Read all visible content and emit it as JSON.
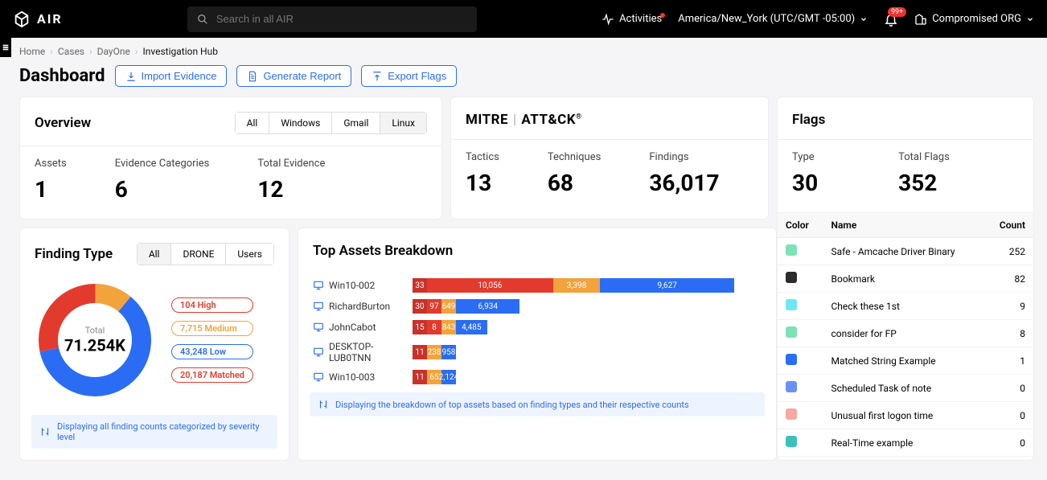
{
  "topbar": {
    "brand": "AIR",
    "search_placeholder": "Search in all AIR",
    "activities_label": "Activities",
    "timezone_label": "America/New_York (UTC/GMT -05:00)",
    "bell_badge": "99+",
    "org_label": "Compromised ORG"
  },
  "breadcrumbs": {
    "items": [
      "Home",
      "Cases",
      "DayOne",
      "Investigation Hub"
    ],
    "current_index": 3
  },
  "header": {
    "title": "Dashboard",
    "buttons": {
      "import": "Import Evidence",
      "report": "Generate Report",
      "export": "Export Flags"
    }
  },
  "overview": {
    "title": "Overview",
    "tabs": [
      "All",
      "Windows",
      "Gmail",
      "Linux"
    ],
    "active_tab": 3,
    "kpis": [
      {
        "label": "Assets",
        "value": "1"
      },
      {
        "label": "Evidence Categories",
        "value": "6"
      },
      {
        "label": "Total Evidence",
        "value": "12"
      }
    ]
  },
  "mitre": {
    "brand_a": "MITRE",
    "brand_b": "ATT&CK",
    "kpis": [
      {
        "label": "Tactics",
        "value": "13"
      },
      {
        "label": "Techniques",
        "value": "68"
      },
      {
        "label": "Findings",
        "value": "36,017"
      }
    ]
  },
  "flags": {
    "title": "Flags",
    "kpis": [
      {
        "label": "Type",
        "value": "30"
      },
      {
        "label": "Total Flags",
        "value": "352"
      }
    ],
    "columns": [
      "Color",
      "Name",
      "Count"
    ],
    "rows": [
      {
        "color": "#7de2b4",
        "name": "Safe - Amcache Driver Binary",
        "count": "252"
      },
      {
        "color": "#2b2b2b",
        "name": "Bookmark",
        "count": "82"
      },
      {
        "color": "#6de7f2",
        "name": "Check these 1st",
        "count": "9"
      },
      {
        "color": "#7de2b4",
        "name": "consider for FP",
        "count": "8"
      },
      {
        "color": "#2a6df4",
        "name": "Matched String Example",
        "count": "1"
      },
      {
        "color": "#6a8ff5",
        "name": "Scheduled Task of note",
        "count": "0"
      },
      {
        "color": "#f5a9a0",
        "name": "Unusual first logon time",
        "count": "0"
      },
      {
        "color": "#3bc1b9",
        "name": "Real-Time example",
        "count": "0"
      }
    ]
  },
  "finding_type": {
    "title": "Finding Type",
    "tabs": [
      "All",
      "DRONE",
      "Users"
    ],
    "active_tab": 0,
    "total_label": "Total",
    "total_value": "71.254K",
    "slices": [
      {
        "label": "104 High",
        "value": 104,
        "color": "#e23b2e",
        "text": "#e23b2e"
      },
      {
        "label": "7,715 Medium",
        "value": 7715,
        "color": "#f2a33c",
        "text": "#f2a33c"
      },
      {
        "label": "43,248 Low",
        "value": 43248,
        "color": "#2a6df4",
        "text": "#2a6df4"
      },
      {
        "label": "20,187 Matched",
        "value": 20187,
        "color": "#e23b2e",
        "text": "#e23b2e"
      }
    ],
    "donut": {
      "radius": 58,
      "thickness": 24,
      "colors": {
        "high": "#e23b2e",
        "medium": "#f2a33c",
        "low": "#2a6df4",
        "matched": "#e23b2e"
      }
    },
    "info": "Displaying all finding counts categorized by severity level"
  },
  "top_assets": {
    "title": "Top Assets Breakdown",
    "max": 23114,
    "colors": {
      "high": "#e23b2e",
      "medium": "#f2a33c",
      "low": "#2a6df4",
      "matched": "#c9322a"
    },
    "rows": [
      {
        "name": "Win10-002",
        "segs": [
          {
            "k": "matched",
            "v": 33,
            "label": "33"
          },
          {
            "k": "high",
            "v": 10056,
            "label": "10,056"
          },
          {
            "k": "medium",
            "v": 3398,
            "label": "3,398"
          },
          {
            "k": "low",
            "v": 9627,
            "label": "9,627"
          }
        ]
      },
      {
        "name": "RichardBurton",
        "segs": [
          {
            "k": "matched",
            "v": 30,
            "label": "30"
          },
          {
            "k": "high",
            "v": 97,
            "label": "97"
          },
          {
            "k": "medium",
            "v": 649,
            "label": "649"
          },
          {
            "k": "low",
            "v": 6934,
            "label": "6,934"
          }
        ]
      },
      {
        "name": "JohnCabot",
        "segs": [
          {
            "k": "matched",
            "v": 15,
            "label": "15"
          },
          {
            "k": "high",
            "v": 8,
            "label": "8"
          },
          {
            "k": "medium",
            "v": 843,
            "label": "843"
          },
          {
            "k": "low",
            "v": 4485,
            "label": "4,485"
          }
        ]
      },
      {
        "name": "DESKTOP-LUB0TNN",
        "segs": [
          {
            "k": "matched",
            "v": 11,
            "label": "11"
          },
          {
            "k": "medium",
            "v": 238,
            "label": "238"
          },
          {
            "k": "low",
            "v": 958,
            "label": "958"
          }
        ]
      },
      {
        "name": "Win10-003",
        "segs": [
          {
            "k": "matched",
            "v": 11,
            "label": "11"
          },
          {
            "k": "medium",
            "v": 65,
            "label": "65"
          },
          {
            "k": "low",
            "v": 2124,
            "label": "2,124"
          }
        ]
      }
    ],
    "info": "Displaying the breakdown of top assets based on finding types and their respective counts"
  }
}
